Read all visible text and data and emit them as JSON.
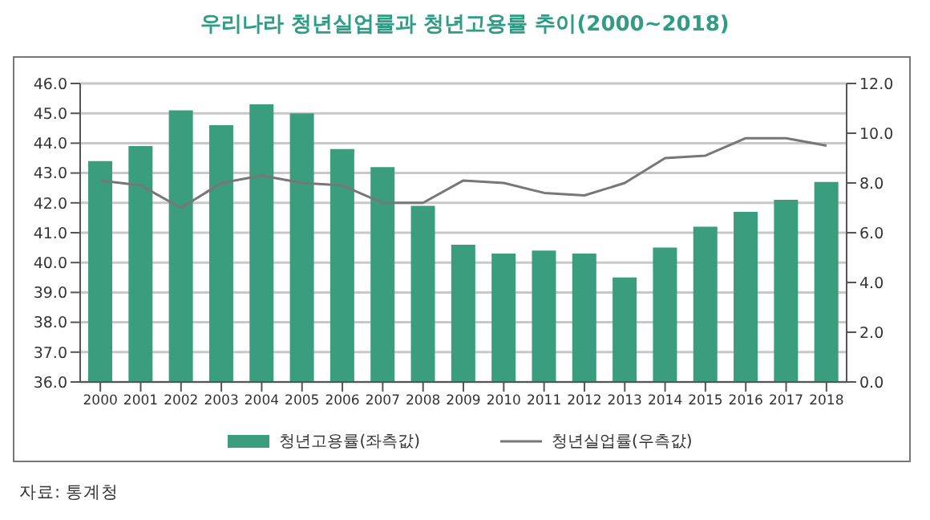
{
  "chart_data": {
    "type": "bar",
    "title": "우리나라 청년실업률과 청년고용률 추이(2000~2018)",
    "categories": [
      "2000",
      "2001",
      "2002",
      "2003",
      "2004",
      "2005",
      "2006",
      "2007",
      "2008",
      "2009",
      "2010",
      "2011",
      "2012",
      "2013",
      "2014",
      "2015",
      "2016",
      "2017",
      "2018"
    ],
    "series": [
      {
        "name": "청년고용률(좌측값)",
        "color": "#3a9e7e",
        "values": [
          43.4,
          43.9,
          45.1,
          44.6,
          45.3,
          45.0,
          43.8,
          43.2,
          41.9,
          40.6,
          40.3,
          40.4,
          40.3,
          39.5,
          40.5,
          41.2,
          41.7,
          42.1,
          42.7
        ]
      },
      {
        "name": "청년실업률(우측값)",
        "type": "line",
        "axis": "y2",
        "color": "#777777",
        "values": [
          8.1,
          7.9,
          7.0,
          8.0,
          8.3,
          8.0,
          7.9,
          7.2,
          7.2,
          8.1,
          8.0,
          7.6,
          7.5,
          8.0,
          9.0,
          9.1,
          9.8,
          9.8,
          9.5
        ]
      }
    ],
    "ylim": [
      36,
      46
    ],
    "yticks": [
      {
        "value": 36,
        "label": "36.0"
      },
      {
        "value": 37,
        "label": "37.0"
      },
      {
        "value": 38,
        "label": "38.0"
      },
      {
        "value": 39,
        "label": "39.0"
      },
      {
        "value": 40,
        "label": "40.0"
      },
      {
        "value": 41,
        "label": "41.0"
      },
      {
        "value": 42,
        "label": "42.0"
      },
      {
        "value": 43,
        "label": "43.0"
      },
      {
        "value": 44,
        "label": "44.0"
      },
      {
        "value": 45,
        "label": "45.0"
      },
      {
        "value": 46,
        "label": "46.0"
      }
    ],
    "y2lim": [
      0,
      12
    ],
    "y2ticks": [
      {
        "value": 0,
        "label": "0.0"
      },
      {
        "value": 2,
        "label": "2.0"
      },
      {
        "value": 4,
        "label": "4.0"
      },
      {
        "value": 6,
        "label": "6.0"
      },
      {
        "value": 8,
        "label": "8.0"
      },
      {
        "value": 10,
        "label": "10.0"
      },
      {
        "value": 12,
        "label": "12.0"
      }
    ],
    "grid": "y",
    "legend": "bottom",
    "marker": "none",
    "line_style": "solid",
    "annotations": [
      "자료: 통계청"
    ]
  }
}
